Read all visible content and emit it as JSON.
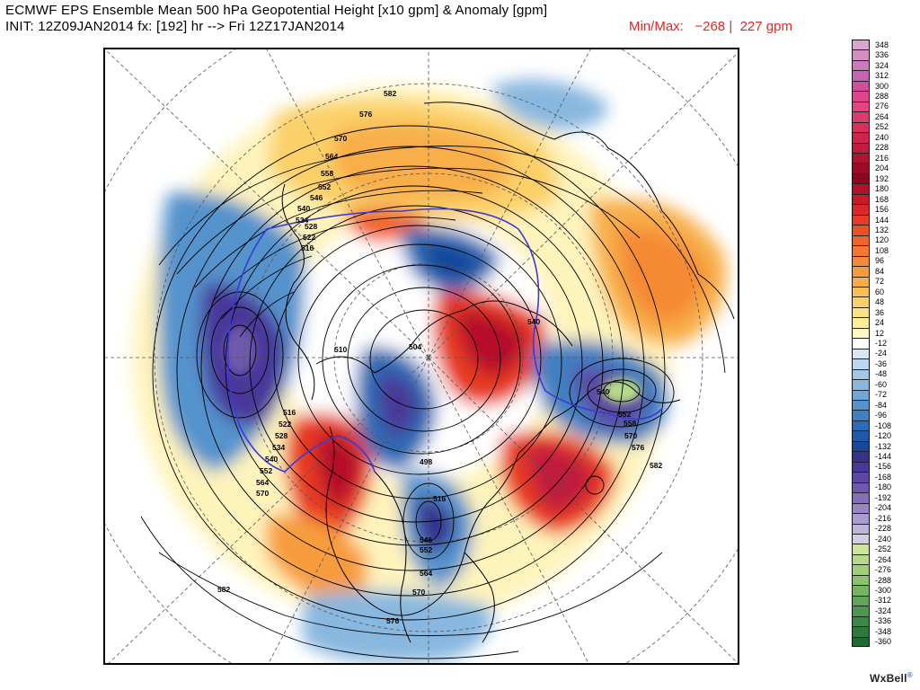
{
  "header": {
    "title": "ECMWF EPS Ensemble Mean 500 hPa Geopotential Height [x10 gpm] & Anomaly [gpm]",
    "subtitle": "INIT: 12Z09JAN2014 fx: [192] hr --> Fri 12Z17JAN2014",
    "minmax_label": "Min/Max:",
    "min_value": "−268",
    "separator": "|",
    "max_value": "227 gpm"
  },
  "colorbar": {
    "levels": [
      {
        "label": "348",
        "color": "#d9a6cf"
      },
      {
        "label": "336",
        "color": "#d28fc4"
      },
      {
        "label": "324",
        "color": "#ca7bbb"
      },
      {
        "label": "312",
        "color": "#c465b1"
      },
      {
        "label": "300",
        "color": "#d24f9c"
      },
      {
        "label": "288",
        "color": "#e0448c"
      },
      {
        "label": "276",
        "color": "#e5457e"
      },
      {
        "label": "264",
        "color": "#de3a6e"
      },
      {
        "label": "252",
        "color": "#d82f5d"
      },
      {
        "label": "240",
        "color": "#cf254d"
      },
      {
        "label": "228",
        "color": "#c01c3e"
      },
      {
        "label": "216",
        "color": "#b01332"
      },
      {
        "label": "204",
        "color": "#9d0b27"
      },
      {
        "label": "192",
        "color": "#8c0620"
      },
      {
        "label": "180",
        "color": "#b5102a"
      },
      {
        "label": "168",
        "color": "#c91a2a"
      },
      {
        "label": "156",
        "color": "#da2727"
      },
      {
        "label": "144",
        "color": "#e83a24"
      },
      {
        "label": "132",
        "color": "#ee4f25"
      },
      {
        "label": "120",
        "color": "#f2632a"
      },
      {
        "label": "108",
        "color": "#f4782f"
      },
      {
        "label": "96",
        "color": "#f58a36"
      },
      {
        "label": "84",
        "color": "#f79c3e"
      },
      {
        "label": "72",
        "color": "#f8ae48"
      },
      {
        "label": "60",
        "color": "#f9bf57"
      },
      {
        "label": "48",
        "color": "#fbd069"
      },
      {
        "label": "36",
        "color": "#fde07f"
      },
      {
        "label": "24",
        "color": "#feee9a"
      },
      {
        "label": "12",
        "color": "#fff8c4"
      },
      {
        "label": "-12",
        "color": "#ffffff"
      },
      {
        "label": "-24",
        "color": "#d5e7f3"
      },
      {
        "label": "-36",
        "color": "#bdd8ee"
      },
      {
        "label": "-48",
        "color": "#a3c8e7"
      },
      {
        "label": "-60",
        "color": "#88b7df"
      },
      {
        "label": "-72",
        "color": "#6ea6d8"
      },
      {
        "label": "-84",
        "color": "#5593cd"
      },
      {
        "label": "-96",
        "color": "#3f7fc2"
      },
      {
        "label": "-108",
        "color": "#2b6cb6"
      },
      {
        "label": "-120",
        "color": "#1f59a8"
      },
      {
        "label": "-132",
        "color": "#19479a"
      },
      {
        "label": "-144",
        "color": "#36318f"
      },
      {
        "label": "-156",
        "color": "#48389a"
      },
      {
        "label": "-168",
        "color": "#5b48a3"
      },
      {
        "label": "-180",
        "color": "#6e5aad"
      },
      {
        "label": "-192",
        "color": "#8170b8"
      },
      {
        "label": "-204",
        "color": "#9687c4"
      },
      {
        "label": "-216",
        "color": "#aa9ecf"
      },
      {
        "label": "-228",
        "color": "#bdb5d9"
      },
      {
        "label": "-240",
        "color": "#d2cde4"
      },
      {
        "label": "-252",
        "color": "#cde59a"
      },
      {
        "label": "-264",
        "color": "#b7da88"
      },
      {
        "label": "-276",
        "color": "#a1cf79"
      },
      {
        "label": "-288",
        "color": "#8bc26c"
      },
      {
        "label": "-300",
        "color": "#76b462"
      },
      {
        "label": "-312",
        "color": "#60a558"
      },
      {
        "label": "-324",
        "color": "#4c964e"
      },
      {
        "label": "-336",
        "color": "#3b8745"
      },
      {
        "label": "-348",
        "color": "#2d783c"
      },
      {
        "label": "-360",
        "color": "#1f6934"
      }
    ]
  },
  "map": {
    "contour_labels": [
      {
        "text": "582"
      },
      {
        "text": "576"
      },
      {
        "text": "570"
      },
      {
        "text": "564"
      },
      {
        "text": "558"
      },
      {
        "text": "552"
      },
      {
        "text": "546"
      },
      {
        "text": "540"
      },
      {
        "text": "534"
      },
      {
        "text": "528"
      },
      {
        "text": "522"
      },
      {
        "text": "516"
      },
      {
        "text": "510"
      },
      {
        "text": "504"
      },
      {
        "text": "540"
      },
      {
        "text": "540"
      },
      {
        "text": "552"
      },
      {
        "text": "558"
      },
      {
        "text": "570"
      },
      {
        "text": "576"
      },
      {
        "text": "582"
      },
      {
        "text": "516"
      },
      {
        "text": "522"
      },
      {
        "text": "528"
      },
      {
        "text": "534"
      },
      {
        "text": "540"
      },
      {
        "text": "552"
      },
      {
        "text": "564"
      },
      {
        "text": "570"
      },
      {
        "text": "498"
      },
      {
        "text": "516"
      },
      {
        "text": "546"
      },
      {
        "text": "552"
      },
      {
        "text": "564"
      },
      {
        "text": "570"
      },
      {
        "text": "576"
      },
      {
        "text": "582"
      }
    ]
  },
  "logo": {
    "text": "WxBell",
    "mark": "®"
  },
  "colors": {
    "minmax": "#e8231f",
    "frame": "#000000",
    "blue_contour": "#3a3ad8"
  }
}
